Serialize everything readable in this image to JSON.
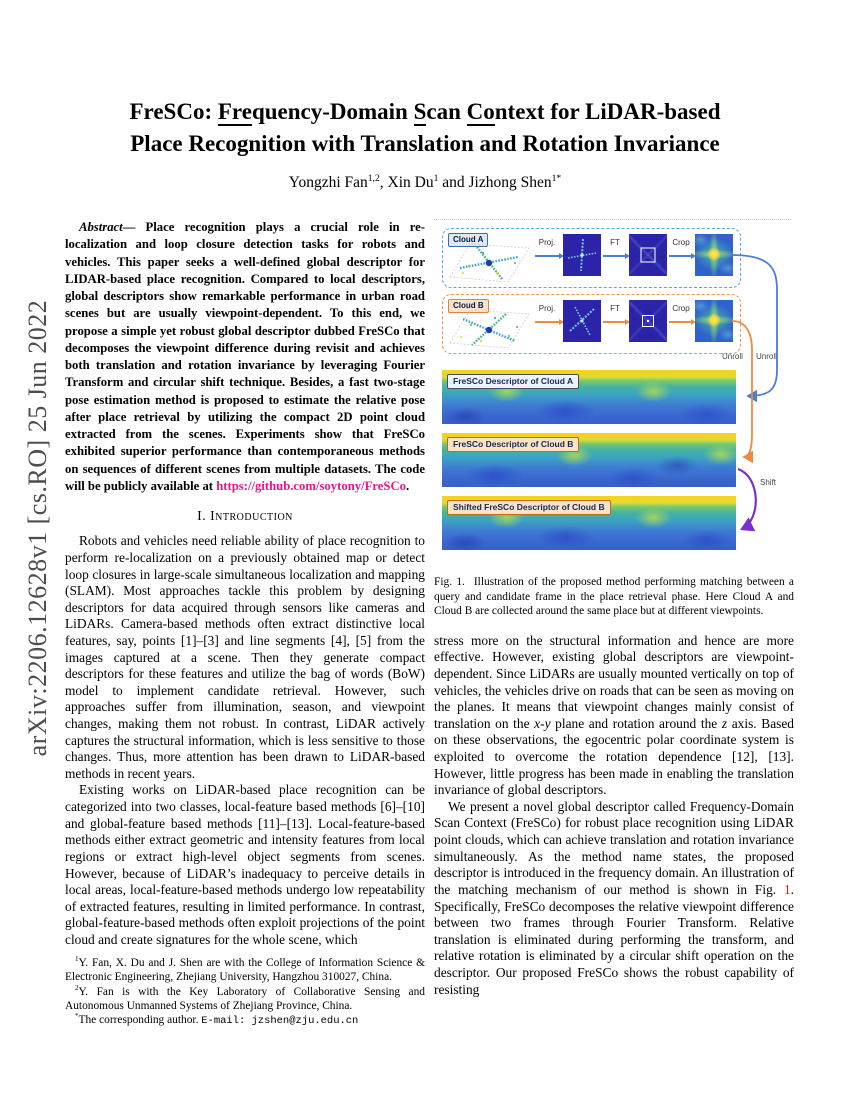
{
  "arxiv_banner": "arXiv:2206.12628v1  [cs.RO]  25 Jun 2022",
  "title": {
    "line1": [
      {
        "t": "FreSCo: "
      },
      {
        "t": "Fre",
        "u": true
      },
      {
        "t": "quency-Domain "
      },
      {
        "t": "S",
        "u": true
      },
      {
        "t": "can "
      },
      {
        "t": "Co",
        "u": true
      },
      {
        "t": "ntext for LiDAR-based"
      }
    ],
    "line2": "Place Recognition with Translation and Rotation Invariance"
  },
  "authors": [
    {
      "t": "Yongzhi Fan"
    },
    {
      "t": "1,2",
      "sup": true
    },
    {
      "t": ", Xin Du"
    },
    {
      "t": "1",
      "sup": true
    },
    {
      "t": " and Jizhong Shen"
    },
    {
      "t": "1*",
      "sup": true
    }
  ],
  "abstract": [
    {
      "t": "Abstract",
      "i": true
    },
    {
      "t": "— Place recognition plays a crucial role in re-localization and loop closure detection tasks for robots and vehicles. This paper seeks a well-defined global descriptor for LIDAR-based place recognition. Compared to local descriptors, global descriptors show remarkable performance in urban road scenes but are usually viewpoint-dependent. To this end, we propose a simple yet robust global descriptor dubbed FreSCo that decomposes the viewpoint difference during revisit and achieves both translation and rotation invariance by leveraging Fourier Transform and circular shift technique. Besides, a fast two-stage pose estimation method is proposed to estimate the relative pose after place retrieval by utilizing the compact 2D point cloud extracted from the scenes. Experiments show that FreSCo exhibited superior performance than contemporaneous methods on sequences of different scenes from multiple datasets. The code will be publicly available at "
    },
    {
      "t": "https://github.com/soytony/FreSCo",
      "link": true,
      "name": "github-link",
      "click": true
    },
    {
      "t": "."
    }
  ],
  "intro_heading": "I. Introduction",
  "intro_p1": [
    {
      "t": "Robots and vehicles need reliable ability of place recognition to perform re-localization on a previously obtained map or detect loop closures in large-scale simultaneous localization and mapping (SLAM). Most approaches tackle this problem by designing descriptors for data acquired through sensors like cameras and LiDARs. Camera-based methods often extract distinctive local features, say, points [1]–[3] and line segments [4], [5] from the images captured at a scene. Then they generate compact descriptors for these features and utilize the bag of words (BoW) model to implement candidate retrieval. However, such approaches suffer from illumination, season, and viewpoint changes, making them not robust. In contrast, LiDAR actively captures the structural information, which is less sensitive to those changes. Thus, more attention has been drawn to LiDAR-based methods in recent years."
    }
  ],
  "intro_p2": [
    {
      "t": "Existing works on LiDAR-based place recognition can be categorized into two classes, local-feature based methods [6]–[10] and global-feature based methods [11]–[13]. Local-feature-based methods either extract geometric and intensity features from local regions or extract high-level object segments from scenes. However, because of LiDAR’s inadequacy to perceive details in local areas, local-feature-based methods undergo low repeatability of extracted features, resulting in limited performance. In contrast, global-feature-based methods often exploit projections of the point cloud and create signatures for the whole scene, which"
    }
  ],
  "footnotes": {
    "fn1": [
      {
        "t": "1",
        "sup": true
      },
      {
        "t": "Y. Fan, X. Du and J. Shen are with the College of Information Science & Electronic Engineering, Zhejiang University, Hangzhou 310027, China."
      }
    ],
    "fn2": [
      {
        "t": "2",
        "sup": true
      },
      {
        "t": "Y. Fan is with the Key Laboratory of Collaborative Sensing and Autonomous Unmanned Systems of Zhejiang Province, China."
      }
    ],
    "fn3": [
      {
        "t": "*",
        "sup": true
      },
      {
        "t": "The corresponding author. "
      },
      {
        "t": "E-mail: jzshen@zju.edu.cn",
        "mono": true,
        "name": "email-link",
        "click": true
      }
    ]
  },
  "figure": {
    "cloud_a_label": "Cloud A",
    "cloud_b_label": "Cloud B",
    "proj_label": "Proj.",
    "ft_label": "FT",
    "crop_label": "Crop",
    "unroll_label": "Unroll",
    "shift_label": "Shift",
    "strip_a_label": "FreSCo Descriptor of Cloud A",
    "strip_b_label": "FreSCo Descriptor of Cloud B",
    "strip_b_shifted_label": "Shifted FreSCo Descriptor of Cloud B",
    "colors": {
      "cloud_a": "#4a7fd4",
      "cloud_b": "#ed8a3f",
      "shift_arrow": "#7a2fd0"
    }
  },
  "caption": [
    {
      "t": "Fig. 1.",
      "gap": true
    },
    {
      "t": "Illustration of the proposed method performing matching between a query and candidate frame in the place retrieval phase. Here Cloud A and Cloud B are collected around the same place but at different viewpoints."
    }
  ],
  "col2_p1": [
    {
      "t": "stress more on the structural information and hence are more effective. However, existing global descriptors are viewpoint-dependent. Since LiDARs are usually mounted vertically on top of vehicles, the vehicles drive on roads that can be seen as moving on the planes. It means that viewpoint changes mainly consist of translation on the "
    },
    {
      "t": "x-y",
      "i": true
    },
    {
      "t": " plane and rotation around the "
    },
    {
      "t": "z",
      "i": true
    },
    {
      "t": " axis. Based on these observations, the egocentric polar coordinate system is exploited to overcome the rotation dependence [12], [13]. However, little progress has been made in enabling the translation invariance of global descriptors."
    }
  ],
  "col2_p2": [
    {
      "t": "We present a novel global descriptor called Frequency-Domain Scan Context (FreSCo) for robust place recognition using LiDAR point clouds, which can achieve translation and rotation invariance simultaneously. As the method name states, the proposed descriptor is introduced in the frequency domain. An illustration of the matching mechanism of our method is shown in Fig. "
    },
    {
      "t": "1",
      "ref": true,
      "name": "fig1-ref",
      "click": true
    },
    {
      "t": ". Specifically, FreSCo decomposes the relative viewpoint difference between two frames through Fourier Transform. Relative translation is eliminated during performing the transform, and relative rotation is eliminated by a circular shift operation on the descriptor. Our proposed FreSCo shows the robust capability of resisting"
    }
  ]
}
